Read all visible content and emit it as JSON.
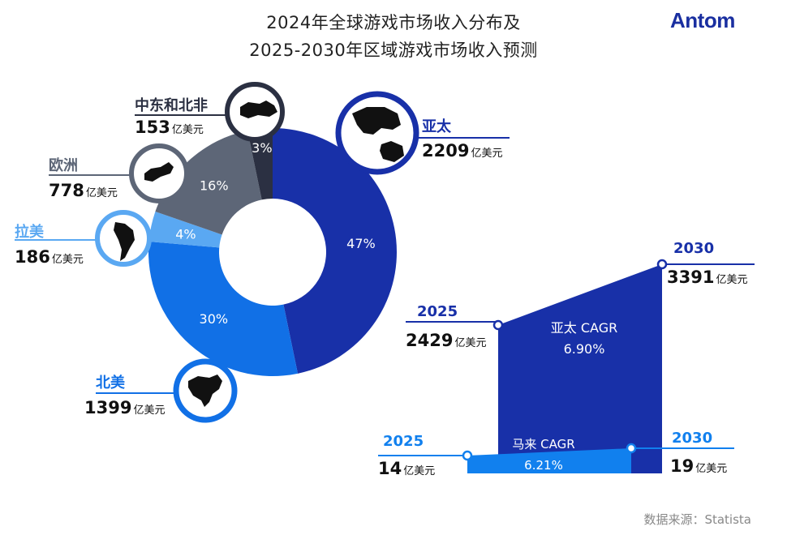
{
  "title_line1": "2024年全球游戏市场收入分布及",
  "title_line2": "2025-2030年区域游戏市场收入预测",
  "logo": "Antom",
  "source": "数据来源：Statista",
  "unit": "亿美元",
  "colors": {
    "apac": "#1830a8",
    "north_america": "#1170e6",
    "latam": "#5aa8f2",
    "europe": "#5d6677",
    "mena": "#2b3042",
    "my": "#1180ee"
  },
  "icons": {
    "apac": "asia-pacific-map-icon",
    "mena": "middle-east-africa-map-icon",
    "europe": "europe-map-icon",
    "latam": "latin-america-map-icon",
    "north_america": "north-america-map-icon"
  },
  "chart_data": [
    {
      "type": "pie",
      "variant": "donut",
      "categories": [
        "亚太",
        "北美",
        "拉美",
        "欧洲",
        "中东和北非"
      ],
      "values": [
        2209,
        1399,
        186,
        778,
        153
      ],
      "percent_labels": [
        "47%",
        "30%",
        "4%",
        "16%",
        "3%"
      ],
      "value_labels": [
        "2209",
        "1399",
        "186",
        "778",
        "153"
      ],
      "unit": "亿美元"
    },
    {
      "type": "area",
      "series": [
        {
          "name": "亚太",
          "cagr_label": "亚太 CAGR",
          "cagr_value": "6.90%",
          "x": [
            "2025",
            "2030"
          ],
          "values": [
            2429,
            3391
          ]
        },
        {
          "name": "马来",
          "cagr_label": "马来 CAGR",
          "cagr_value": "6.21%",
          "x": [
            "2025",
            "2030"
          ],
          "values": [
            14,
            19
          ]
        }
      ],
      "unit": "亿美元"
    }
  ]
}
